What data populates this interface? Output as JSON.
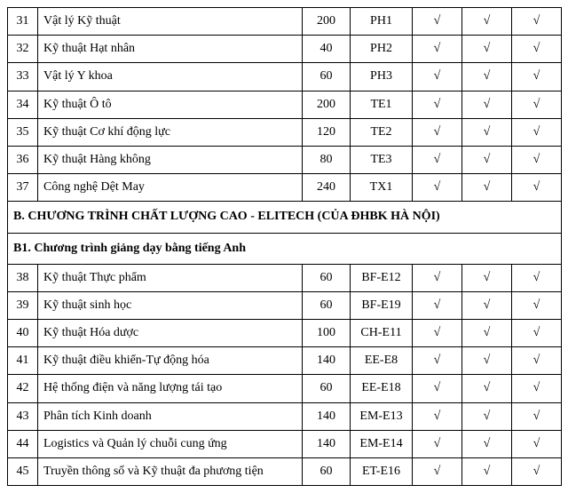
{
  "check": "√",
  "section_b": "B. CHƯƠNG TRÌNH CHẤT LƯỢNG CAO - ELITECH (CỦA ĐHBK HÀ NỘI)",
  "section_b1": "B1. Chương trình giảng dạy bằng tiếng Anh",
  "rows_top": [
    {
      "n": "31",
      "name": "Vật lý Kỹ thuật",
      "qty": "200",
      "code": "PH1"
    },
    {
      "n": "32",
      "name": "Kỹ thuật Hạt nhân",
      "qty": "40",
      "code": "PH2"
    },
    {
      "n": "33",
      "name": "Vật lý Y khoa",
      "qty": "60",
      "code": "PH3"
    },
    {
      "n": "34",
      "name": "Kỹ thuật Ô tô",
      "qty": "200",
      "code": "TE1"
    },
    {
      "n": "35",
      "name": "Kỹ thuật Cơ khí động lực",
      "qty": "120",
      "code": "TE2"
    },
    {
      "n": "36",
      "name": "Kỹ thuật Hàng không",
      "qty": "80",
      "code": "TE3"
    },
    {
      "n": "37",
      "name": "Công nghệ Dệt May",
      "qty": "240",
      "code": "TX1"
    }
  ],
  "rows_bot": [
    {
      "n": "38",
      "name": "Kỹ thuật Thực phẩm",
      "qty": "60",
      "code": "BF-E12"
    },
    {
      "n": "39",
      "name": "Kỹ thuật sinh học",
      "qty": "60",
      "code": "BF-E19"
    },
    {
      "n": "40",
      "name": "Kỹ thuật Hóa dược",
      "qty": "100",
      "code": "CH-E11"
    },
    {
      "n": "41",
      "name": "Kỹ thuật điều khiển-Tự động hóa",
      "qty": "140",
      "code": "EE-E8"
    },
    {
      "n": "42",
      "name": "Hệ thống điện và năng lượng tái tạo",
      "qty": "60",
      "code": "EE-E18"
    },
    {
      "n": "43",
      "name": "Phân tích Kinh doanh",
      "qty": "140",
      "code": "EM-E13"
    },
    {
      "n": "44",
      "name": "Logistics và Quản lý chuỗi cung ứng",
      "qty": "140",
      "code": "EM-E14"
    },
    {
      "n": "45",
      "name": "Truyền thông số và Kỹ thuật đa phương tiện",
      "qty": "60",
      "code": "ET-E16"
    }
  ]
}
